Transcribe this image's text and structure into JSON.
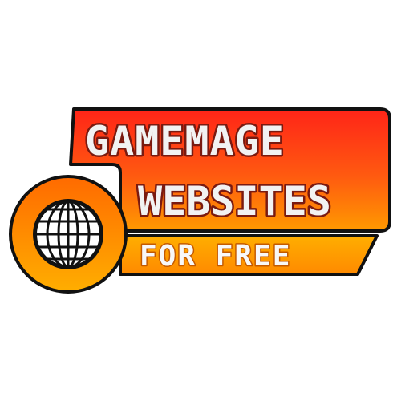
{
  "logo": {
    "line1": "GAMEMAGE",
    "line2": "WEBSITES",
    "line3": "FOR FREE"
  },
  "colors": {
    "banner_top": "#ff2a1a",
    "banner_bottom": "#ffa000",
    "ribbon_top": "#ffb000",
    "ribbon_bottom": "#ff8c00",
    "circle_outer": "#ff8c00",
    "outline": "#111111",
    "text": "#f2f2f2",
    "globe_fill": "#ffffff",
    "globe_bg": "#111111"
  },
  "icons": {
    "globe": "wireframe-globe-icon"
  }
}
